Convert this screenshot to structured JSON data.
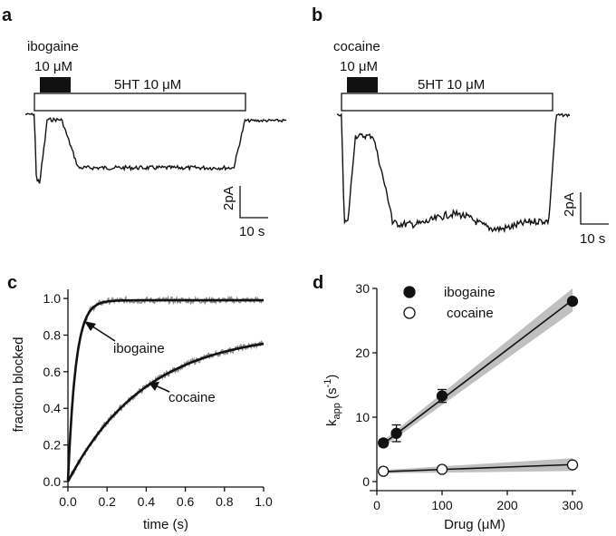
{
  "panels": {
    "a": {
      "letter": "a",
      "drug_label": "ibogaine",
      "drug_conc": "10 μM",
      "agonist_label": "5HT 10 μM",
      "scale_current": "2pA",
      "scale_time": "10 s"
    },
    "b": {
      "letter": "b",
      "drug_label": "cocaine",
      "drug_conc": "10 μM",
      "agonist_label": "5HT 10 μM",
      "scale_current": "2pA",
      "scale_time": "10 s"
    },
    "c": {
      "letter": "c",
      "annotations": {
        "ibogaine": "ibogaine",
        "cocaine": "cocaine"
      }
    },
    "d": {
      "letter": "d",
      "legend": {
        "ibogaine": "ibogaine",
        "cocaine": "cocaine"
      },
      "ylabel_main": "k",
      "ylabel_sub": "app",
      "ylabel_unit_open": " (s",
      "ylabel_sup": "-1",
      "ylabel_unit_close": ")"
    }
  },
  "chart_data": [
    {
      "type": "line",
      "panel": "c",
      "xlabel": "time (s)",
      "ylabel": "fraction blocked",
      "xlim": [
        0,
        1.0
      ],
      "ylim": [
        0,
        1.05
      ],
      "xticks": [
        "0.0",
        "0.2",
        "0.4",
        "0.6",
        "0.8",
        "1.0"
      ],
      "yticks": [
        "0.0",
        "0.2",
        "0.4",
        "0.6",
        "0.8",
        "1.0"
      ],
      "series": [
        {
          "name": "ibogaine",
          "tau": 0.04,
          "plateau": 0.99,
          "color": "#111111"
        },
        {
          "name": "cocaine",
          "tau": 0.4,
          "plateau": 0.82,
          "color": "#111111"
        }
      ],
      "raw_trace_color": "#8c8c8c"
    },
    {
      "type": "scatter",
      "panel": "d",
      "xlabel": "Drug (μM)",
      "xlim": [
        0,
        300
      ],
      "ylim": [
        0,
        30
      ],
      "xticks": [
        "0",
        "100",
        "200",
        "300"
      ],
      "yticks": [
        "0",
        "10",
        "20",
        "30"
      ],
      "series": [
        {
          "name": "ibogaine",
          "marker": "filled",
          "x": [
            10,
            30,
            100,
            300
          ],
          "y": [
            6.0,
            7.5,
            13.3,
            28.0
          ],
          "err": [
            0.5,
            1.3,
            1.0,
            0.4
          ],
          "fit": [
            5.1,
            0.077
          ]
        },
        {
          "name": "cocaine",
          "marker": "open",
          "x": [
            10,
            100,
            300
          ],
          "y": [
            1.6,
            1.9,
            2.6
          ],
          "err": [
            0.2,
            0.2,
            0.2
          ],
          "fit": [
            1.5,
            0.0038
          ]
        }
      ],
      "confidence_band_color": "#c0c0c0"
    }
  ]
}
